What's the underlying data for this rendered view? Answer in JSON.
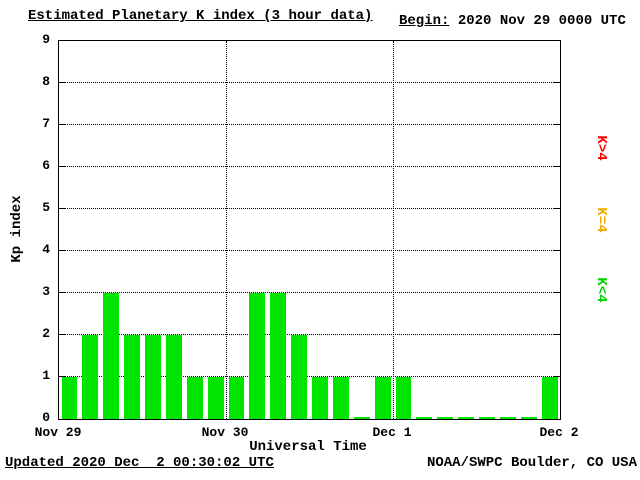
{
  "header": {
    "title": "Estimated Planetary K index (3 hour data)",
    "begin_label": "Begin:",
    "begin_value": " 2020 Nov 29 0000 UTC"
  },
  "chart_data": {
    "type": "bar",
    "title": "Estimated Planetary K index (3 hour data)",
    "begin": "2020 Nov 29 0000 UTC",
    "xlabel": "Universal Time",
    "ylabel": "Kp index",
    "ylim": [
      0,
      9
    ],
    "y_ticks": [
      0,
      1,
      2,
      3,
      4,
      5,
      6,
      7,
      8,
      9
    ],
    "x_ticks": [
      "Nov 29",
      "Nov 30",
      "Dec 1",
      "Dec 2"
    ],
    "hours_per_bar": 3,
    "values": [
      1,
      2,
      3,
      2,
      2,
      2,
      1,
      1,
      1,
      3,
      3,
      2,
      1,
      1,
      0,
      1,
      1,
      0,
      0,
      0,
      0,
      0,
      0,
      1
    ],
    "grid": "dotted",
    "bar_colors": {
      "below_4": "#00e400",
      "equal_4": "#f2a900",
      "above_4": "#ff0000"
    },
    "legend": [
      {
        "label": "K>4",
        "color": "#ff0000"
      },
      {
        "label": "K=4",
        "color": "#f2a900"
      },
      {
        "label": "K<4",
        "color": "#00d000"
      }
    ]
  },
  "footer": {
    "updated": "Updated 2020 Dec  2 00:30:02 UTC",
    "source": "NOAA/SWPC Boulder, CO USA"
  }
}
